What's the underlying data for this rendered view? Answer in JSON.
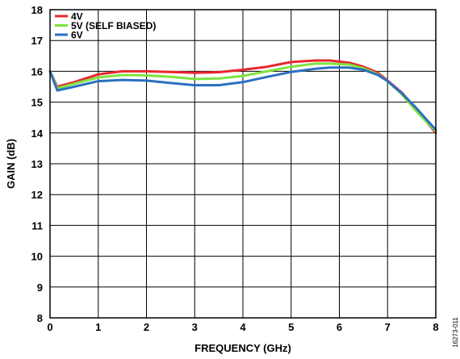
{
  "chart_data": {
    "type": "line",
    "xlabel": "FREQUENCY (GHz)",
    "ylabel": "GAIN (dB)",
    "xlim": [
      0,
      8
    ],
    "ylim": [
      8,
      18
    ],
    "xticks": [
      0,
      1,
      2,
      3,
      4,
      5,
      6,
      7,
      8
    ],
    "yticks": [
      8,
      9,
      10,
      11,
      12,
      13,
      14,
      15,
      16,
      17,
      18
    ],
    "grid": true,
    "legend_position": "top-left",
    "figure_id": "16273-011",
    "series": [
      {
        "name": "4V",
        "color": "#e8262f",
        "x": [
          0,
          0.15,
          0.5,
          1.0,
          1.5,
          2.0,
          2.5,
          3.0,
          3.5,
          4.0,
          4.5,
          5.0,
          5.5,
          5.8,
          6.2,
          6.5,
          6.8,
          7.0,
          7.3,
          7.6,
          8.0
        ],
        "y": [
          16.0,
          15.5,
          15.65,
          15.9,
          16.0,
          16.0,
          15.98,
          15.95,
          15.97,
          16.05,
          16.15,
          16.3,
          16.35,
          16.35,
          16.28,
          16.15,
          15.95,
          15.7,
          15.3,
          14.75,
          14.0
        ]
      },
      {
        "name": "5V (SELF BIASED)",
        "color": "#7ee341",
        "x": [
          0,
          0.15,
          0.5,
          1.0,
          1.5,
          2.0,
          2.5,
          3.0,
          3.5,
          4.0,
          4.5,
          5.0,
          5.5,
          5.8,
          6.2,
          6.5,
          6.8,
          7.0,
          7.3,
          7.6,
          8.0
        ],
        "y": [
          16.0,
          15.45,
          15.6,
          15.8,
          15.88,
          15.87,
          15.82,
          15.75,
          15.77,
          15.85,
          16.0,
          16.15,
          16.25,
          16.25,
          16.22,
          16.1,
          15.9,
          15.68,
          15.25,
          14.7,
          14.05
        ]
      },
      {
        "name": "6V",
        "color": "#2b6fc0",
        "x": [
          0,
          0.15,
          0.5,
          1.0,
          1.5,
          2.0,
          2.5,
          3.0,
          3.5,
          4.0,
          4.5,
          5.0,
          5.5,
          5.8,
          6.2,
          6.5,
          6.8,
          7.0,
          7.3,
          7.6,
          8.0
        ],
        "y": [
          16.0,
          15.38,
          15.5,
          15.68,
          15.72,
          15.7,
          15.62,
          15.55,
          15.55,
          15.65,
          15.82,
          15.98,
          16.08,
          16.12,
          16.12,
          16.05,
          15.88,
          15.68,
          15.28,
          14.8,
          14.1
        ]
      }
    ]
  }
}
